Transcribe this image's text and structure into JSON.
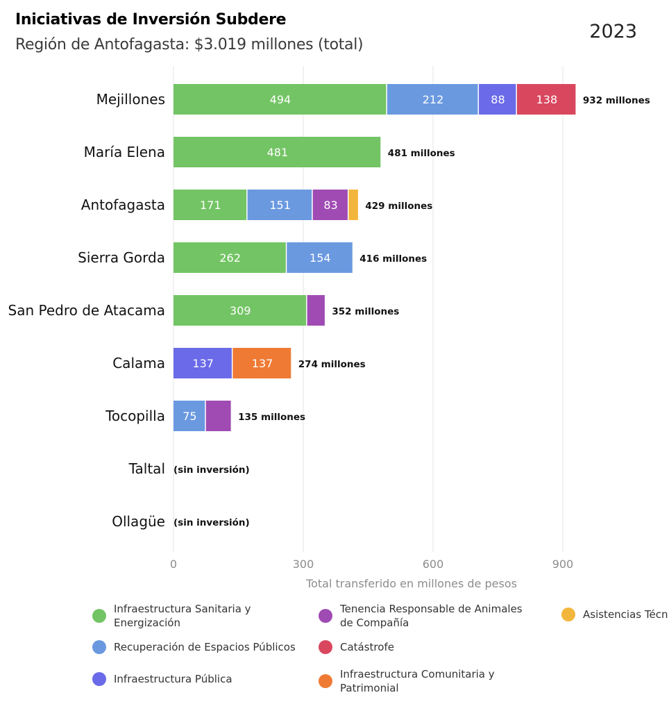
{
  "header": {
    "title": "Iniciativas de Inversión Subdere",
    "subtitle": "Región de Antofagasta: $3.019 millones (total)",
    "year": "2023"
  },
  "chart_data": {
    "type": "bar",
    "orientation": "horizontal",
    "stacked": true,
    "xlabel": "Total transferido en millones de pesos",
    "xlim": [
      0,
      950
    ],
    "xticks": [
      0,
      300,
      600,
      900
    ],
    "grid": true,
    "categories": [
      "Mejillones",
      "María Elena",
      "Antofagasta",
      "Sierra Gorda",
      "San Pedro de Atacama",
      "Calama",
      "Tocopilla",
      "Taltal",
      "Ollagüe"
    ],
    "series": [
      {
        "name": "Infraestructura Sanitaria y Energización",
        "color": "#73c464",
        "values": [
          494,
          481,
          171,
          262,
          309,
          0,
          0,
          0,
          0
        ]
      },
      {
        "name": "Recuperación de Espacios Públicos",
        "color": "#6a99e0",
        "values": [
          212,
          0,
          151,
          154,
          0,
          0,
          75,
          0,
          0
        ]
      },
      {
        "name": "Infraestructura Pública",
        "color": "#6b6ae8",
        "values": [
          88,
          0,
          0,
          0,
          0,
          137,
          0,
          0,
          0
        ]
      },
      {
        "name": "Tenencia Responsable de Animales de Compañía",
        "color": "#a04bb3",
        "values": [
          0,
          0,
          83,
          0,
          43,
          0,
          60,
          0,
          0
        ]
      },
      {
        "name": "Catástrofe",
        "color": "#d9475f",
        "values": [
          138,
          0,
          0,
          0,
          0,
          0,
          0,
          0,
          0
        ]
      },
      {
        "name": "Infraestructura Comunitaria y Patrimonial",
        "color": "#ef7a34",
        "values": [
          0,
          0,
          0,
          0,
          0,
          137,
          0,
          0,
          0
        ]
      },
      {
        "name": "Asistencias Técn",
        "color": "#f3b63d",
        "values": [
          0,
          0,
          24,
          0,
          0,
          0,
          0,
          0,
          0
        ]
      }
    ],
    "segment_labels": [
      [
        "494",
        "212",
        "88",
        "",
        "138",
        "",
        ""
      ],
      [
        "481",
        "",
        "",
        "",
        "",
        "",
        ""
      ],
      [
        "171",
        "151",
        "",
        "83",
        "",
        "",
        ""
      ],
      [
        "262",
        "154",
        "",
        "",
        "",
        "",
        ""
      ],
      [
        "309",
        "",
        "",
        "",
        "",
        "",
        ""
      ],
      [
        "",
        "",
        "137",
        "",
        "",
        "137",
        ""
      ],
      [
        "",
        "75",
        "",
        "",
        "",
        "",
        ""
      ],
      [
        "",
        "",
        "",
        "",
        "",
        "",
        ""
      ],
      [
        "",
        "",
        "",
        "",
        "",
        "",
        ""
      ]
    ],
    "totals": [
      "932 millones",
      "481 millones",
      "429 millones",
      "416 millones",
      "352 millones",
      "274 millones",
      "135 millones",
      "(sin inversión)",
      "(sin inversión)"
    ]
  }
}
